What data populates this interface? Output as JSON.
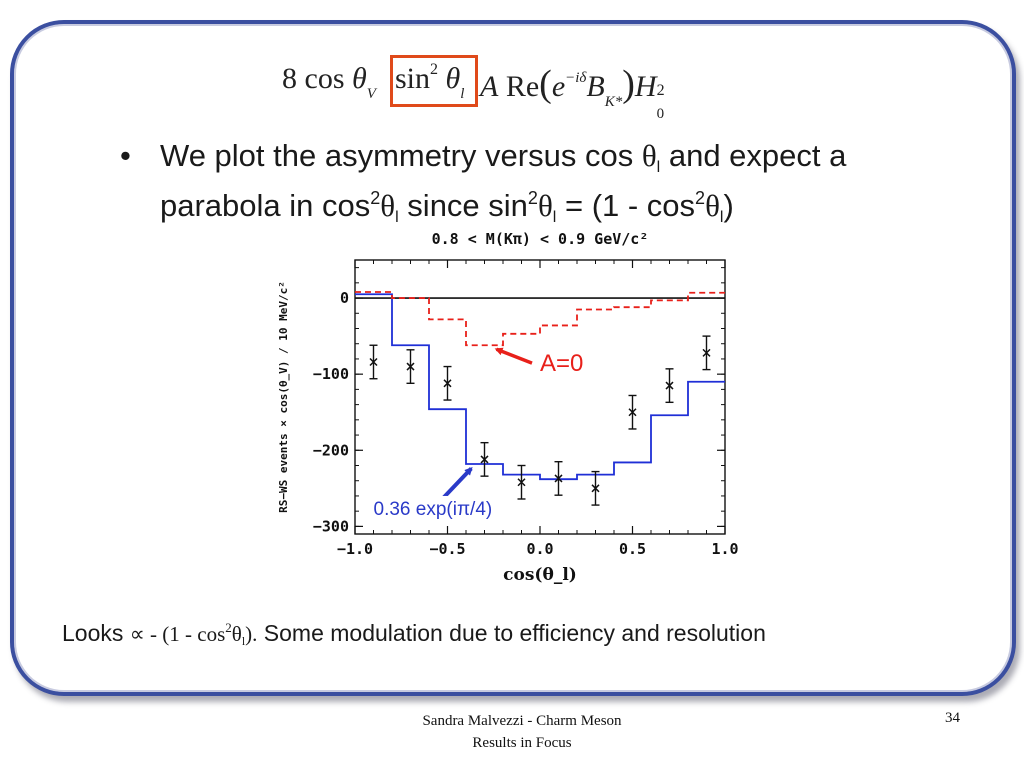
{
  "slide": {
    "formula": {
      "coef": "8",
      "cos": "cos",
      "theta": "θ",
      "sub_v": "V",
      "sin": "sin",
      "sup_2": "2",
      "sub_l": "l",
      "A": "A",
      "Re": "Re",
      "lparen": "(",
      "e": "e",
      "exp_sup": "−iδ",
      "B": "B",
      "sub_k": "K*",
      "rparen": ")",
      "H": "H",
      "H_sup": "2",
      "H_sub": "0"
    },
    "highlight_color": "#e04a1a",
    "bullet": {
      "marker": "•",
      "l1_a": "We plot the asymmetry versus cos ",
      "theta": "θ",
      "sub_l": "l",
      "l1_b": " and expect a",
      "l2_a": "parabola in cos",
      "sup_2": "2",
      "l2_b": " since  sin",
      "l2_c": " = (1 - cos",
      "l2_d": ")"
    },
    "bottom": {
      "text1": "Looks ",
      "math1": " ∝ - (1 - cos",
      "sup2": "2",
      "theta": "θ",
      "subl": "l",
      "math2": ").",
      "text2": "  Some modulation due to efficiency and resolution"
    },
    "footer": {
      "line1": "Sandra Malvezzi - Charm Meson",
      "line2": "Results  in Focus",
      "page_number": "34"
    }
  },
  "chart_data": {
    "type": "line",
    "title": "0.8 < M(Kπ) < 0.9 GeV/c²",
    "xlabel": "cos(θ_l)",
    "ylabel": "RS−WS events × cos(θ_V) / 10 MeV/c²",
    "xlim": [
      -1.0,
      1.0
    ],
    "ylim": [
      -310,
      50
    ],
    "x_ticks": [
      "−1.0",
      "−0.5",
      "0.0",
      "0.5",
      "1.0"
    ],
    "y_ticks": [
      "0",
      "−100",
      "−200",
      "−300"
    ],
    "zero_line": true,
    "data_points": {
      "x": [
        -0.9,
        -0.7,
        -0.5,
        -0.3,
        -0.1,
        0.1,
        0.3,
        0.5,
        0.7,
        0.9
      ],
      "y": [
        -84,
        -90,
        -112,
        -212,
        -242,
        -237,
        -250,
        -150,
        -115,
        -72
      ],
      "yerr": [
        22,
        22,
        22,
        22,
        22,
        22,
        22,
        22,
        22,
        22
      ]
    },
    "series": [
      {
        "name": "0.36 exp(iπ/4)",
        "style": "solid-step",
        "color": "#1f2fd6",
        "bin_edges": [
          -1.0,
          -0.8,
          -0.6,
          -0.4,
          -0.2,
          0.0,
          0.2,
          0.4,
          0.6,
          0.8,
          1.0
        ],
        "values": [
          5,
          -62,
          -146,
          -218,
          -232,
          -238,
          -232,
          -216,
          -154,
          -110
        ]
      },
      {
        "name": "A=0",
        "style": "dashed-step",
        "color": "#e8201a",
        "bin_edges": [
          -1.0,
          -0.8,
          -0.6,
          -0.4,
          -0.2,
          0.0,
          0.2,
          0.4,
          0.6,
          0.8,
          1.0
        ],
        "values": [
          8,
          0,
          -28,
          -62,
          -47,
          -36,
          -15,
          -12,
          -3,
          7
        ]
      }
    ],
    "annotations": [
      {
        "text": "A=0",
        "color": "#e8201a",
        "arrow_target": [
          -0.3,
          -62
        ],
        "label_at": [
          0.0,
          -96
        ]
      },
      {
        "text": "0.36 exp(iπ/4)",
        "color": "#2a3ac8",
        "arrow_target": [
          -0.35,
          -216
        ],
        "label_at": [
          -0.9,
          -285
        ]
      }
    ]
  }
}
